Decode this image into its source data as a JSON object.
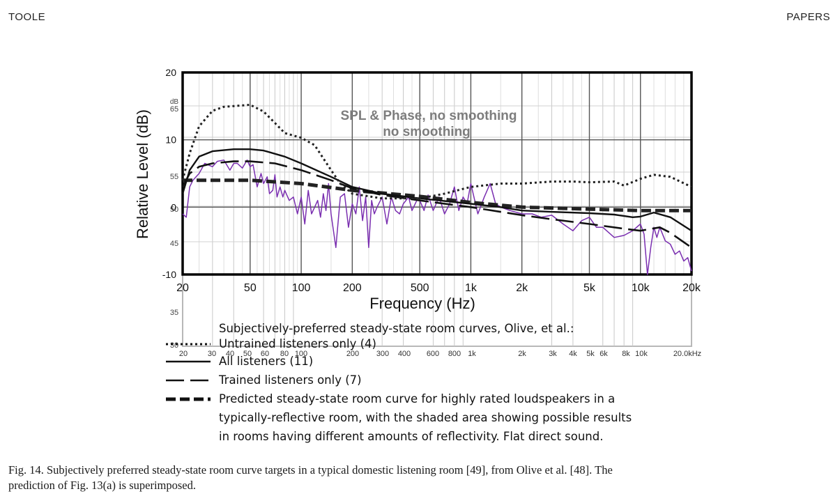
{
  "header": {
    "left": "TOOLE",
    "right": "PAPERS"
  },
  "chart_data": {
    "type": "line",
    "ylabel": "Relative Level (dB)",
    "xlabel": "Frequency (Hz)",
    "x_scale": "log",
    "xlim": [
      20,
      20000
    ],
    "ylim": [
      -10,
      20
    ],
    "x_ticks": [
      "20",
      "50",
      "100",
      "200",
      "500",
      "1k",
      "2k",
      "5k",
      "10k",
      "20k"
    ],
    "x_tick_values": [
      20,
      50,
      100,
      200,
      500,
      1000,
      2000,
      5000,
      10000,
      20000
    ],
    "y_ticks": [
      "20",
      "10",
      "0",
      "-10"
    ],
    "y_tick_values": [
      20,
      10,
      0,
      -10
    ],
    "inset": {
      "title_line1": "SPL & Phase, no smoothing",
      "title_line2": "no smoothing",
      "y_unit": "dB",
      "y_ticks": [
        "65",
        "55",
        "50",
        "45",
        "35",
        "30"
      ],
      "x_ticks": [
        "20",
        "30",
        "40",
        "50",
        "60",
        "80",
        "100",
        "200",
        "300",
        "400",
        "600",
        "800",
        "1k",
        "2k",
        "3k",
        "4k",
        "5k",
        "6k",
        "8k",
        "10k",
        "20.0kHz"
      ]
    },
    "series": [
      {
        "name": "Untrained listeners only (4)",
        "style": "dotted",
        "color": "#222222",
        "x": [
          20,
          22,
          25,
          30,
          35,
          40,
          50,
          60,
          70,
          80,
          100,
          120,
          150,
          170,
          200,
          300,
          500,
          700,
          1000,
          1500,
          2000,
          3000,
          4000,
          5000,
          7000,
          8000,
          10000,
          12000,
          15000,
          20000
        ],
        "y": [
          4,
          8,
          12,
          14.3,
          14.9,
          15,
          15.2,
          14.2,
          12.5,
          11,
          10.3,
          9.2,
          5.5,
          3.5,
          2,
          1.3,
          1.3,
          2,
          3,
          3.5,
          3.5,
          3.8,
          3.8,
          3.7,
          3.8,
          3.2,
          4.2,
          4.8,
          4.5,
          3
        ]
      },
      {
        "name": "All listeners (11)",
        "style": "solid",
        "color": "#111111",
        "x": [
          20,
          22,
          25,
          30,
          40,
          50,
          60,
          80,
          100,
          150,
          200,
          300,
          500,
          1000,
          1500,
          2000,
          3000,
          5000,
          7000,
          9000,
          10000,
          12000,
          15000,
          20000
        ],
        "y": [
          2,
          5.5,
          7.5,
          8.3,
          8.6,
          8.6,
          8.4,
          7.5,
          6.5,
          4.5,
          3,
          2,
          1.3,
          0.5,
          0,
          -0.5,
          -0.7,
          -0.9,
          -1.1,
          -1.5,
          -1.4,
          -0.8,
          -1.5,
          -3.5
        ]
      },
      {
        "name": "Trained listeners only (7)",
        "style": "long-dash",
        "color": "#111111",
        "x": [
          20,
          22,
          25,
          30,
          40,
          50,
          70,
          100,
          150,
          200,
          300,
          500,
          1000,
          2000,
          3000,
          5000,
          8000,
          10000,
          13000,
          15000,
          20000
        ],
        "y": [
          3,
          5,
          6,
          6.5,
          6.8,
          6.8,
          6.5,
          5.5,
          4,
          2.8,
          1.8,
          1,
          0,
          -1.2,
          -1.8,
          -2.5,
          -3.2,
          -3.5,
          -3,
          -3.8,
          -6
        ]
      },
      {
        "name": "Predicted steady-state room curve for highly rated loudspeakers in a typically-reflective room, with the shaded area showing possible results in rooms having different amounts of reflectivity.  Flat direct sound.",
        "style": "heavy-dash",
        "color": "#222222",
        "x": [
          20,
          30,
          50,
          100,
          200,
          500,
          1000,
          2000,
          5000,
          10000,
          20000
        ],
        "y": [
          4,
          4,
          4,
          3.5,
          2.5,
          1.6,
          0.7,
          0,
          -0.3,
          -0.5,
          -0.5
        ]
      },
      {
        "name": "SPL measurement",
        "style": "solid",
        "color": "#7a2fb0",
        "x": [
          20,
          21,
          22,
          23,
          25,
          27,
          30,
          32,
          35,
          38,
          40,
          42,
          45,
          48,
          50,
          52,
          55,
          58,
          60,
          63,
          65,
          68,
          70,
          72,
          75,
          78,
          80,
          85,
          90,
          95,
          100,
          105,
          110,
          115,
          120,
          125,
          130,
          135,
          140,
          145,
          150,
          160,
          170,
          180,
          190,
          200,
          210,
          220,
          230,
          240,
          250,
          260,
          270,
          280,
          300,
          320,
          340,
          360,
          380,
          400,
          430,
          450,
          480,
          500,
          530,
          560,
          600,
          650,
          700,
          750,
          800,
          850,
          900,
          950,
          1000,
          1100,
          1200,
          1300,
          1400,
          1500,
          1700,
          2000,
          2300,
          2600,
          3000,
          3500,
          4000,
          4500,
          5000,
          5500,
          6000,
          7000,
          8000,
          9000,
          10000,
          10500,
          11000,
          11500,
          12000,
          12500,
          13000,
          14000,
          15000,
          16000,
          17000,
          18000,
          19000,
          20000
        ],
        "y": [
          -1,
          -1.5,
          3,
          4,
          5,
          6.5,
          6,
          6.8,
          7,
          5.5,
          6.5,
          6.5,
          5.8,
          7,
          6,
          6.3,
          3,
          5,
          3.5,
          4.5,
          2,
          2.5,
          4.8,
          1.5,
          3,
          1.5,
          2.5,
          1,
          1.5,
          -1,
          1.5,
          -2.5,
          2.5,
          -1,
          0,
          1,
          -1.5,
          2,
          -0.5,
          3.5,
          -1,
          -6,
          1.5,
          2,
          -3,
          0.5,
          -1,
          3,
          -2,
          1.5,
          -6,
          1,
          -1,
          0,
          1.5,
          -2.5,
          1.5,
          -0.5,
          -1,
          0.5,
          1.5,
          -0.5,
          1,
          1,
          -0.5,
          1.8,
          -0.5,
          1.5,
          -1,
          0.5,
          3,
          -0.5,
          1.5,
          0.5,
          3.5,
          -1,
          1.5,
          3.5,
          0.5,
          0,
          -0.5,
          -1,
          -1,
          -1.5,
          -1.2,
          -2.5,
          -3.5,
          -2,
          -1.5,
          -3,
          -3,
          -4.5,
          -4.2,
          -3.5,
          -2.5,
          -4,
          -10,
          -6,
          -3,
          -4.5,
          -3,
          -5,
          -5.5,
          -7,
          -6.5,
          -8,
          -7.5,
          -9.5
        ]
      }
    ],
    "legend": {
      "title": "Subjectively-preferred steady-state room curves, Olive, et al.:",
      "entries": [
        {
          "style": "dotted",
          "text": "Untrained listeners only (4)"
        },
        {
          "style": "solid",
          "text": "All listeners (11)"
        },
        {
          "style": "long-dash",
          "text": "Trained listeners only (7)"
        },
        {
          "style": "heavy-dash",
          "lines": [
            "Predicted steady-state room curve for highly rated loudspeakers in a",
            "typically-reflective room, with the shaded area showing possible results",
            "in rooms having different amounts of reflectivity.  Flat direct sound."
          ]
        }
      ]
    }
  },
  "caption": {
    "line1": "Fig. 14.  Subjectively preferred steady-state room curve targets in a typical domestic listening room [49], from Olive et al. [48]. The",
    "line2": "prediction of Fig. 13(a) is superimposed."
  }
}
